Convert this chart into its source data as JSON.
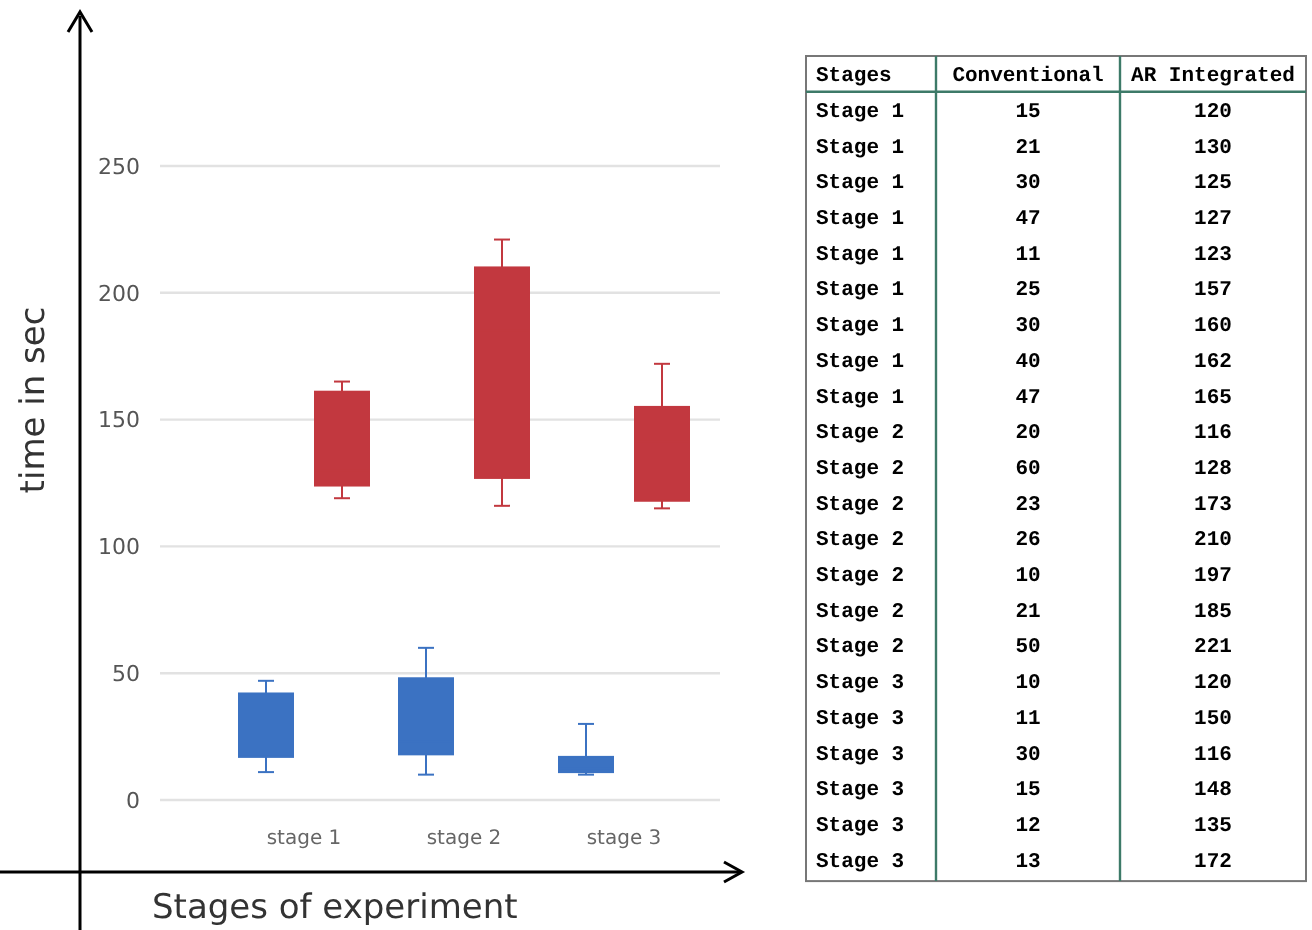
{
  "chart_data": [
    {
      "type": "box",
      "ylabel": "time in sec",
      "xlabel": "Stages of experiment",
      "categories": [
        "stage 1",
        "stage 2",
        "stage 3"
      ],
      "ylim": [
        0,
        250
      ],
      "yticks": [
        0,
        50,
        100,
        150,
        200,
        250
      ],
      "grid": "y",
      "series": [
        {
          "color": "#3b72c2",
          "boxes": [
            {
              "low": 11,
              "q1": 17,
              "median": 30,
              "q3": 42,
              "high": 47
            },
            {
              "low": 10,
              "q1": 18,
              "median": 23,
              "q3": 48,
              "high": 60
            },
            {
              "low": 10,
              "q1": 11,
              "median": 12.5,
              "q3": 17,
              "high": 30
            }
          ]
        },
        {
          "color": "#c2383f",
          "boxes": [
            {
              "low": 119,
              "q1": 124,
              "median": 130,
              "q3": 161,
              "high": 165
            },
            {
              "low": 116,
              "q1": 127,
              "median": 185,
              "q3": 210,
              "high": 221
            },
            {
              "low": 115,
              "q1": 118,
              "median": 141.5,
              "q3": 155,
              "high": 172
            }
          ]
        }
      ]
    },
    {
      "type": "other",
      "xlabel": "Stages",
      "categories": [
        "Stage 1",
        "Stage 1",
        "Stage 1",
        "Stage 1",
        "Stage 1",
        "Stage 1",
        "Stage 1",
        "Stage 1",
        "Stage 1",
        "Stage 2",
        "Stage 2",
        "Stage 2",
        "Stage 2",
        "Stage 2",
        "Stage 2",
        "Stage 2",
        "Stage 3",
        "Stage 3",
        "Stage 3",
        "Stage 3",
        "Stage 3",
        "Stage 3"
      ],
      "data_labels": true,
      "series": [
        {
          "name": "Conventional",
          "values": [
            15,
            21,
            30,
            47,
            11,
            25,
            30,
            40,
            47,
            20,
            60,
            23,
            26,
            10,
            21,
            50,
            10,
            11,
            30,
            15,
            12,
            13
          ]
        },
        {
          "name": "AR Integrated",
          "values": [
            120,
            130,
            125,
            127,
            123,
            157,
            160,
            162,
            165,
            116,
            128,
            173,
            210,
            197,
            185,
            221,
            120,
            150,
            116,
            148,
            135,
            172
          ]
        }
      ]
    }
  ]
}
